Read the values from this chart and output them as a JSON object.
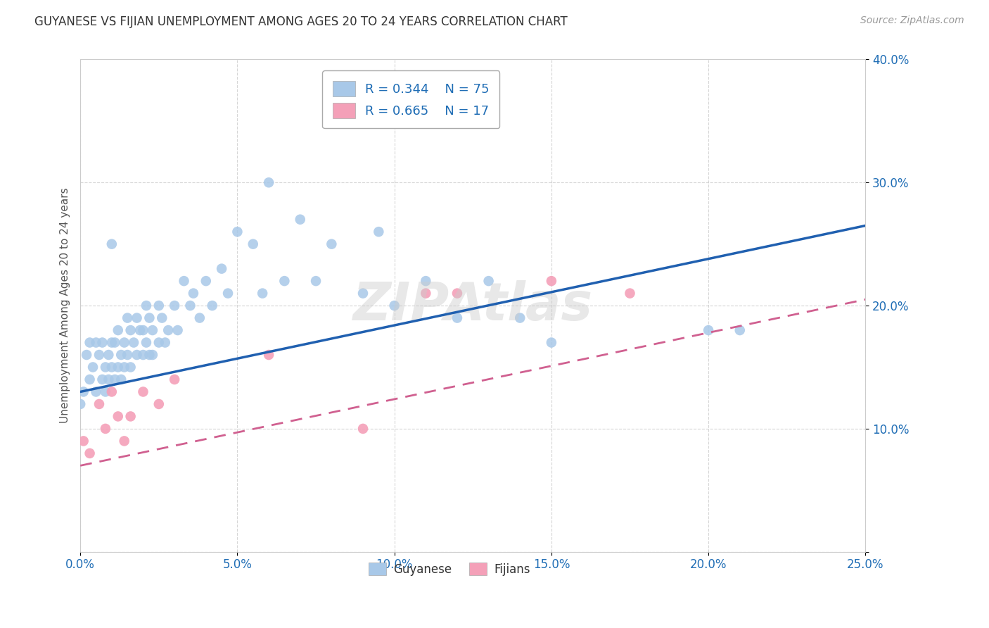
{
  "title": "GUYANESE VS FIJIAN UNEMPLOYMENT AMONG AGES 20 TO 24 YEARS CORRELATION CHART",
  "source": "Source: ZipAtlas.com",
  "ylabel": "Unemployment Among Ages 20 to 24 years",
  "xlim": [
    0.0,
    0.25
  ],
  "ylim": [
    0.0,
    0.4
  ],
  "xticks": [
    0.0,
    0.05,
    0.1,
    0.15,
    0.2,
    0.25
  ],
  "yticks": [
    0.0,
    0.1,
    0.2,
    0.3,
    0.4
  ],
  "xtick_labels": [
    "0.0%",
    "5.0%",
    "10.0%",
    "15.0%",
    "20.0%",
    "25.0%"
  ],
  "ytick_labels": [
    "",
    "10.0%",
    "20.0%",
    "30.0%",
    "40.0%"
  ],
  "guyanese_color": "#a8c8e8",
  "fijian_color": "#f4a0b8",
  "guyanese_line_color": "#2060b0",
  "fijian_line_color": "#d06090",
  "R_guyanese": 0.344,
  "N_guyanese": 75,
  "R_fijian": 0.665,
  "N_fijian": 17,
  "legend_label_guyanese": "Guyanese",
  "legend_label_fijian": "Fijians",
  "guyanese_line_x0": 0.0,
  "guyanese_line_y0": 0.13,
  "guyanese_line_x1": 0.25,
  "guyanese_line_y1": 0.265,
  "fijian_line_x0": 0.0,
  "fijian_line_y0": 0.07,
  "fijian_line_x1": 0.25,
  "fijian_line_y1": 0.205,
  "guyanese_x": [
    0.0,
    0.001,
    0.002,
    0.003,
    0.003,
    0.004,
    0.005,
    0.005,
    0.006,
    0.007,
    0.007,
    0.008,
    0.008,
    0.009,
    0.009,
    0.01,
    0.01,
    0.01,
    0.011,
    0.011,
    0.012,
    0.012,
    0.013,
    0.013,
    0.014,
    0.014,
    0.015,
    0.015,
    0.016,
    0.016,
    0.017,
    0.018,
    0.018,
    0.019,
    0.02,
    0.02,
    0.021,
    0.021,
    0.022,
    0.022,
    0.023,
    0.023,
    0.025,
    0.025,
    0.026,
    0.027,
    0.028,
    0.03,
    0.031,
    0.033,
    0.035,
    0.036,
    0.038,
    0.04,
    0.042,
    0.045,
    0.047,
    0.05,
    0.055,
    0.058,
    0.06,
    0.065,
    0.07,
    0.075,
    0.08,
    0.09,
    0.095,
    0.1,
    0.11,
    0.12,
    0.13,
    0.14,
    0.15,
    0.2,
    0.21
  ],
  "guyanese_y": [
    0.12,
    0.13,
    0.16,
    0.17,
    0.14,
    0.15,
    0.17,
    0.13,
    0.16,
    0.17,
    0.14,
    0.15,
    0.13,
    0.16,
    0.14,
    0.25,
    0.17,
    0.15,
    0.17,
    0.14,
    0.18,
    0.15,
    0.16,
    0.14,
    0.17,
    0.15,
    0.19,
    0.16,
    0.18,
    0.15,
    0.17,
    0.19,
    0.16,
    0.18,
    0.18,
    0.16,
    0.2,
    0.17,
    0.19,
    0.16,
    0.18,
    0.16,
    0.2,
    0.17,
    0.19,
    0.17,
    0.18,
    0.2,
    0.18,
    0.22,
    0.2,
    0.21,
    0.19,
    0.22,
    0.2,
    0.23,
    0.21,
    0.26,
    0.25,
    0.21,
    0.3,
    0.22,
    0.27,
    0.22,
    0.25,
    0.21,
    0.26,
    0.2,
    0.22,
    0.19,
    0.22,
    0.19,
    0.17,
    0.18,
    0.18
  ],
  "fijian_x": [
    0.001,
    0.003,
    0.006,
    0.008,
    0.01,
    0.012,
    0.014,
    0.016,
    0.02,
    0.025,
    0.03,
    0.06,
    0.09,
    0.11,
    0.12,
    0.15,
    0.175
  ],
  "fijian_y": [
    0.09,
    0.08,
    0.12,
    0.1,
    0.13,
    0.11,
    0.09,
    0.11,
    0.13,
    0.12,
    0.14,
    0.16,
    0.1,
    0.21,
    0.21,
    0.22,
    0.21
  ]
}
